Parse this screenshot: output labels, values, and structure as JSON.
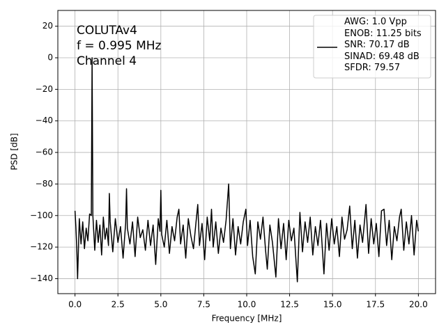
{
  "chart_data": {
    "type": "line",
    "xlabel": "Frequency [MHz]",
    "ylabel": "PSD [dB]",
    "annotations": [
      "COLUTAv4",
      "f = 0.995 MHz",
      "Channel 4"
    ],
    "xlim": [
      -1,
      21
    ],
    "ylim": [
      -149.5,
      30
    ],
    "xticks": [
      {
        "value": 0,
        "label": "0.0"
      },
      2.5,
      {
        "value": 5,
        "label": "5.0"
      },
      7.5,
      {
        "value": 10,
        "label": "10.0"
      },
      12.5,
      {
        "value": 15,
        "label": "15.0"
      },
      17.5,
      {
        "value": 20,
        "label": "20.0"
      }
    ],
    "yticks": [
      {
        "value": -140,
        "label": "−140"
      },
      {
        "value": -120,
        "label": "−120"
      },
      {
        "value": -100,
        "label": "−100"
      },
      {
        "value": -80,
        "label": "−80"
      },
      {
        "value": -60,
        "label": "−60"
      },
      {
        "value": -40,
        "label": "−40"
      },
      {
        "value": -20,
        "label": "−20"
      },
      0,
      20
    ],
    "grid": true,
    "legend": "upper right",
    "x": [
      0,
      0.05,
      0.1,
      0.15,
      0.25,
      0.35,
      0.45,
      0.55,
      0.65,
      0.75,
      0.85,
      0.95,
      0.995,
      1.04,
      1.15,
      1.25,
      1.35,
      1.45,
      1.55,
      1.65,
      1.75,
      1.85,
      1.95,
      2.0,
      2.05,
      2.2,
      2.35,
      2.5,
      2.65,
      2.8,
      2.95,
      3.0,
      3.05,
      3.2,
      3.35,
      3.5,
      3.65,
      3.8,
      3.95,
      4.1,
      4.25,
      4.4,
      4.55,
      4.7,
      4.85,
      4.95,
      5.0,
      5.05,
      5.2,
      5.35,
      5.5,
      5.65,
      5.8,
      5.95,
      6.05,
      6.15,
      6.3,
      6.45,
      6.6,
      6.75,
      6.9,
      7.05,
      7.15,
      7.25,
      7.4,
      7.55,
      7.7,
      7.85,
      7.95,
      8.05,
      8.2,
      8.35,
      8.5,
      8.65,
      8.8,
      8.95,
      9.05,
      9.2,
      9.35,
      9.5,
      9.65,
      9.8,
      9.95,
      10.05,
      10.2,
      10.35,
      10.5,
      10.65,
      10.8,
      10.95,
      11.1,
      11.2,
      11.35,
      11.5,
      11.7,
      11.85,
      12.0,
      12.15,
      12.3,
      12.45,
      12.6,
      12.75,
      12.95,
      13.1,
      13.25,
      13.4,
      13.55,
      13.7,
      13.85,
      14.0,
      14.15,
      14.3,
      14.5,
      14.65,
      14.8,
      14.95,
      15.1,
      15.25,
      15.4,
      15.55,
      15.7,
      15.85,
      16.0,
      16.15,
      16.3,
      16.45,
      16.6,
      16.75,
      16.95,
      17.1,
      17.25,
      17.4,
      17.55,
      17.7,
      17.85,
      18.0,
      18.15,
      18.3,
      18.45,
      18.6,
      18.75,
      18.9,
      19.0,
      19.15,
      19.3,
      19.45,
      19.6,
      19.75,
      19.9,
      20.0
    ],
    "series": [
      {
        "name": "AWG: 1.0 Vpp\nENOB: 11.25 bits\nSNR: 70.17 dB\nSINAD: 69.48 dB\nSFDR: 79.57",
        "color": "#000000",
        "values": [
          -97,
          -107,
          -120,
          -140,
          -102,
          -118,
          -104,
          -121,
          -108,
          -116,
          -99,
          -100,
          0,
          -100,
          -122,
          -103,
          -117,
          -106,
          -125,
          -101,
          -115,
          -108,
          -119,
          -86,
          -104,
          -123,
          -102,
          -117,
          -107,
          -127,
          -105,
          -83,
          -108,
          -118,
          -104,
          -126,
          -101,
          -114,
          -109,
          -122,
          -103,
          -119,
          -106,
          -131,
          -102,
          -110,
          -84,
          -112,
          -120,
          -103,
          -124,
          -107,
          -116,
          -101,
          -96,
          -118,
          -106,
          -127,
          -102,
          -113,
          -121,
          -104,
          -93,
          -119,
          -105,
          -128,
          -101,
          -116,
          -96,
          -120,
          -104,
          -124,
          -108,
          -117,
          -103,
          -80,
          -121,
          -102,
          -125,
          -107,
          -118,
          -104,
          -96,
          -119,
          -103,
          -126,
          -137,
          -104,
          -115,
          -101,
          -122,
          -134,
          -106,
          -117,
          -139,
          -102,
          -121,
          -105,
          -128,
          -103,
          -116,
          -108,
          -142,
          -98,
          -123,
          -104,
          -117,
          -101,
          -125,
          -107,
          -119,
          -103,
          -137,
          -105,
          -122,
          -102,
          -118,
          -107,
          -126,
          -101,
          -115,
          -109,
          -94,
          -121,
          -103,
          -127,
          -106,
          -117,
          -93,
          -124,
          -102,
          -118,
          -105,
          -126,
          -97,
          -96,
          -119,
          -103,
          -128,
          -107,
          -116,
          -101,
          -96,
          -122,
          -104,
          -118,
          -100,
          -125,
          -103,
          -110
        ]
      }
    ]
  }
}
